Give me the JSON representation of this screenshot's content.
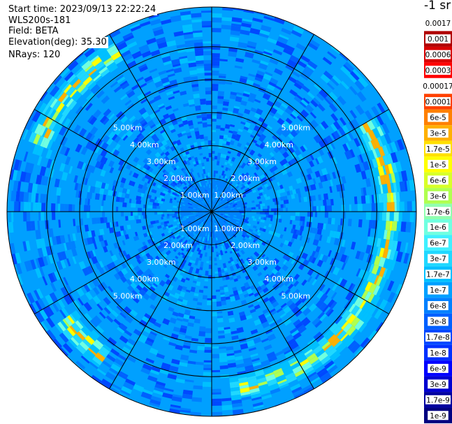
{
  "header": {
    "start_time": "Start time: 2023/09/13 22:22:24",
    "instrument": "WLS200s-181",
    "field": "Field: BETA",
    "elevation": "Elevation(deg): 35.30",
    "nrays": "NRays: 120"
  },
  "chart_data": {
    "type": "heatmap",
    "projection": "polar-ppi",
    "nrays": 120,
    "range_rings_km": [
      1,
      2,
      3,
      4,
      5
    ],
    "range_ring_labels": [
      "1.00km",
      "2.00km",
      "3.00km",
      "4.00km",
      "5.00km"
    ],
    "max_range_km": 6.2,
    "spokes": 12,
    "grid": true,
    "colorbar": {
      "unit": "-1 sr",
      "labels": [
        "0.0017",
        "0.001",
        "0.0006",
        "0.0003",
        "0.00017",
        "0.0001",
        "6e-5",
        "3e-5",
        "1.7e-5",
        "1e-5",
        "6e-6",
        "3e-6",
        "1.7e-6",
        "1e-6",
        "6e-7",
        "3e-7",
        "1.7e-7",
        "1e-7",
        "6e-8",
        "3e-8",
        "1.7e-8",
        "1e-8",
        "6e-9",
        "3e-9",
        "1.7e-9",
        "1e-9"
      ],
      "colors": [
        "#ffffff",
        "#b00000",
        "#d80000",
        "#ff0000",
        "#ffffff",
        "#ff4000",
        "#ff8000",
        "#ffb000",
        "#ffe000",
        "#ffff00",
        "#d8ff28",
        "#b0ff50",
        "#90ffb0",
        "#70ffe0",
        "#40f0ff",
        "#20d8ff",
        "#00c0ff",
        "#00a0ff",
        "#0080ff",
        "#0060ff",
        "#0048ff",
        "#0030ff",
        "#0000ff",
        "#0000d0",
        "#0000a0",
        "#000080"
      ]
    },
    "background_level": "1e-7",
    "near_field_level": "6e-8",
    "high_backscatter_arc": {
      "bearing_deg_from": 60,
      "bearing_deg_to": 175,
      "range_km": 5.4,
      "peak_level": "3e-5"
    },
    "secondary_arcs": [
      {
        "bearing_deg_from": 290,
        "bearing_deg_to": 330,
        "range_km": 5.6,
        "peak_level": "3e-5"
      },
      {
        "bearing_deg_from": 215,
        "bearing_deg_to": 235,
        "range_km": 5.5,
        "peak_level": "3e-5"
      }
    ]
  }
}
